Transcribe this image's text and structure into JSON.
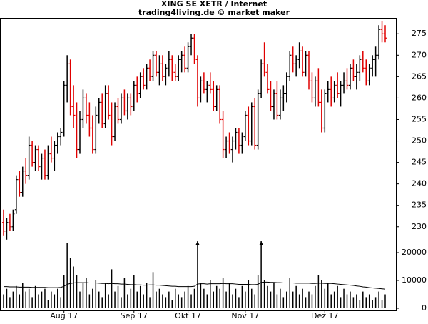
{
  "chart_data": [
    {
      "type": "ohlc",
      "title": "XING SE XETR / Internet",
      "subtitle": "trading4living.de © market maker",
      "categories": [
        null,
        null,
        null,
        null,
        null,
        null,
        null,
        null,
        null,
        null,
        null,
        null,
        null,
        null,
        null,
        null,
        null,
        null,
        null,
        "Aug 17",
        null,
        null,
        null,
        null,
        null,
        null,
        null,
        null,
        null,
        null,
        null,
        null,
        null,
        null,
        null,
        null,
        null,
        null,
        null,
        null,
        null,
        "Sep 17",
        null,
        null,
        null,
        null,
        null,
        null,
        null,
        null,
        null,
        null,
        null,
        null,
        null,
        null,
        null,
        null,
        "Okt 17",
        null,
        null,
        null,
        null,
        null,
        null,
        null,
        null,
        null,
        null,
        null,
        null,
        null,
        null,
        null,
        null,
        null,
        "Nov 17",
        null,
        null,
        null,
        null,
        null,
        null,
        null,
        null,
        null,
        null,
        null,
        null,
        null,
        null,
        null,
        null,
        null,
        null,
        null,
        null,
        null,
        null,
        null,
        null,
        "Dez 17",
        null,
        null,
        null,
        null,
        null,
        null,
        null,
        null,
        null,
        null,
        null,
        null,
        null,
        null,
        null,
        null,
        null,
        null,
        null
      ],
      "open": [
        231,
        229,
        231,
        230,
        234,
        241,
        238,
        243,
        242,
        249,
        245,
        248,
        244,
        246,
        242,
        247,
        246,
        249,
        251,
        252,
        263,
        268,
        258,
        256,
        248,
        255,
        260,
        256,
        253,
        248,
        256,
        259,
        254,
        261,
        256,
        251,
        258,
        255,
        260,
        257,
        260,
        258,
        263,
        261,
        265,
        263,
        267,
        265,
        270,
        266,
        268,
        265,
        267,
        269,
        266,
        265,
        269,
        270,
        267,
        272,
        274,
        269,
        260,
        264,
        262,
        263,
        262,
        258,
        262,
        255,
        248,
        250,
        248,
        250,
        252,
        249,
        251,
        256,
        250,
        258,
        249,
        261,
        268,
        266,
        262,
        258,
        261,
        256,
        260,
        261,
        265,
        270,
        268,
        269,
        271,
        266,
        270,
        264,
        260,
        264,
        259,
        253,
        261,
        262,
        260,
        263,
        261,
        263,
        264,
        263,
        267,
        265,
        266,
        269,
        267,
        264,
        267,
        269,
        270,
        276,
        275
      ],
      "high": [
        234,
        232,
        233,
        234,
        242,
        243,
        244,
        246,
        251,
        250,
        249,
        249,
        247,
        248,
        249,
        251,
        250,
        252,
        253,
        264,
        270,
        269,
        263,
        259,
        257,
        262,
        261,
        259,
        256,
        258,
        260,
        261,
        263,
        263,
        259,
        259,
        260,
        261,
        262,
        261,
        261,
        264,
        265,
        266,
        267,
        268,
        269,
        271,
        271,
        270,
        270,
        268,
        271,
        270,
        268,
        270,
        271,
        272,
        273,
        275,
        275,
        270,
        265,
        266,
        264,
        266,
        264,
        263,
        263,
        257,
        251,
        252,
        251,
        253,
        253,
        252,
        257,
        258,
        259,
        260,
        262,
        269,
        273,
        268,
        264,
        262,
        264,
        262,
        263,
        266,
        271,
        272,
        270,
        273,
        272,
        271,
        271,
        266,
        265,
        267,
        262,
        262,
        264,
        265,
        264,
        266,
        264,
        266,
        267,
        268,
        269,
        268,
        270,
        271,
        269,
        268,
        270,
        272,
        277,
        278,
        277
      ],
      "low": [
        228,
        227,
        229,
        229,
        233,
        237,
        237,
        240,
        241,
        244,
        243,
        243,
        241,
        241,
        241,
        245,
        243,
        247,
        249,
        251,
        259,
        256,
        253,
        246,
        247,
        253,
        254,
        251,
        247,
        247,
        254,
        253,
        253,
        255,
        249,
        250,
        254,
        254,
        256,
        255,
        256,
        257,
        259,
        260,
        262,
        262,
        264,
        264,
        265,
        263,
        264,
        263,
        265,
        264,
        264,
        264,
        266,
        266,
        266,
        270,
        268,
        258,
        259,
        261,
        259,
        261,
        257,
        257,
        254,
        246,
        246,
        247,
        245,
        248,
        247,
        247,
        250,
        249,
        249,
        248,
        248,
        260,
        265,
        261,
        257,
        255,
        255,
        255,
        257,
        259,
        264,
        266,
        265,
        267,
        265,
        265,
        262,
        259,
        258,
        258,
        252,
        252,
        259,
        258,
        259,
        260,
        258,
        261,
        262,
        262,
        264,
        262,
        264,
        266,
        263,
        263,
        265,
        265,
        269,
        273,
        273
      ],
      "close": [
        229,
        231,
        230,
        233,
        241,
        238,
        243,
        242,
        249,
        245,
        248,
        244,
        246,
        242,
        247,
        246,
        249,
        251,
        252,
        263,
        268,
        258,
        256,
        248,
        255,
        260,
        256,
        253,
        248,
        256,
        259,
        254,
        261,
        256,
        251,
        258,
        255,
        260,
        257,
        260,
        258,
        263,
        261,
        265,
        263,
        267,
        265,
        270,
        266,
        268,
        265,
        267,
        269,
        266,
        265,
        269,
        270,
        267,
        272,
        274,
        269,
        260,
        264,
        262,
        263,
        262,
        258,
        262,
        255,
        248,
        250,
        248,
        250,
        252,
        249,
        251,
        256,
        250,
        258,
        249,
        261,
        268,
        266,
        262,
        258,
        261,
        256,
        260,
        261,
        265,
        270,
        268,
        269,
        271,
        266,
        270,
        264,
        260,
        264,
        259,
        253,
        261,
        262,
        260,
        263,
        261,
        263,
        264,
        263,
        267,
        265,
        266,
        269,
        267,
        264,
        267,
        269,
        270,
        276,
        275,
        274
      ],
      "up_color": "#000000",
      "down_color": "#e00000",
      "ylim": [
        226.8,
        278.7
      ],
      "yticks": [
        230,
        235,
        240,
        245,
        250,
        255,
        260,
        265,
        270,
        275
      ]
    },
    {
      "type": "volume",
      "values": [
        5000,
        7000,
        4000,
        6000,
        8000,
        5000,
        9000,
        6000,
        7000,
        4000,
        8000,
        5000,
        6000,
        7000,
        3000,
        6000,
        5000,
        7000,
        4000,
        12000,
        23500,
        18000,
        15000,
        12000,
        6000,
        9000,
        11000,
        5000,
        7000,
        10000,
        6000,
        4000,
        9000,
        5000,
        14000,
        6000,
        8000,
        4000,
        11000,
        5000,
        7000,
        12000,
        6000,
        8000,
        5000,
        9000,
        4000,
        13000,
        6000,
        7000,
        5000,
        4000,
        6000,
        3000,
        7000,
        5000,
        4000,
        6000,
        8000,
        5000,
        7000,
        30000,
        9000,
        7000,
        5000,
        10000,
        6000,
        8000,
        7000,
        11000,
        6000,
        9000,
        5000,
        7000,
        4000,
        8000,
        6000,
        10000,
        7000,
        5000,
        12000,
        30000,
        10000,
        8000,
        6000,
        9000,
        5000,
        7000,
        4000,
        6000,
        11000,
        6000,
        8000,
        5000,
        7000,
        4000,
        6000,
        5000,
        8000,
        12000,
        10000,
        7000,
        9000,
        5000,
        6000,
        8000,
        4000,
        7000,
        5000,
        6000,
        4000,
        5000,
        3000,
        6000,
        4000,
        5000,
        3000,
        4000,
        6000,
        3000,
        5000
      ],
      "average": [
        7800,
        7800,
        7700,
        7700,
        7700,
        7600,
        7600,
        7600,
        7600,
        7500,
        7500,
        7500,
        7500,
        7500,
        7400,
        7400,
        7400,
        7400,
        7500,
        7900,
        8600,
        8900,
        9100,
        9200,
        9200,
        9200,
        9200,
        9100,
        9100,
        9100,
        9000,
        8900,
        8900,
        8800,
        8900,
        8800,
        8800,
        8700,
        8700,
        8600,
        8500,
        8500,
        8400,
        8400,
        8300,
        8300,
        8400,
        8400,
        8300,
        8300,
        8200,
        8100,
        8000,
        7900,
        7900,
        7800,
        7800,
        7800,
        7800,
        7800,
        7900,
        8700,
        8800,
        8800,
        8700,
        8800,
        8800,
        8800,
        8800,
        8900,
        8800,
        8800,
        8800,
        8700,
        8600,
        8600,
        8600,
        8600,
        8500,
        8500,
        8600,
        9300,
        9400,
        9400,
        9300,
        9300,
        9200,
        9200,
        9100,
        9100,
        9100,
        9100,
        9000,
        9000,
        9000,
        9000,
        9000,
        8900,
        8900,
        9000,
        9000,
        8900,
        8900,
        8900,
        8800,
        8700,
        8600,
        8500,
        8400,
        8300,
        8200,
        8000,
        7900,
        7700,
        7600,
        7400,
        7300,
        7200,
        7100,
        7000,
        6900
      ],
      "color": "#000000",
      "average_color": "#000000",
      "ylim": [
        -770,
        24100
      ],
      "yticks": [
        0,
        10000,
        20000
      ]
    }
  ]
}
